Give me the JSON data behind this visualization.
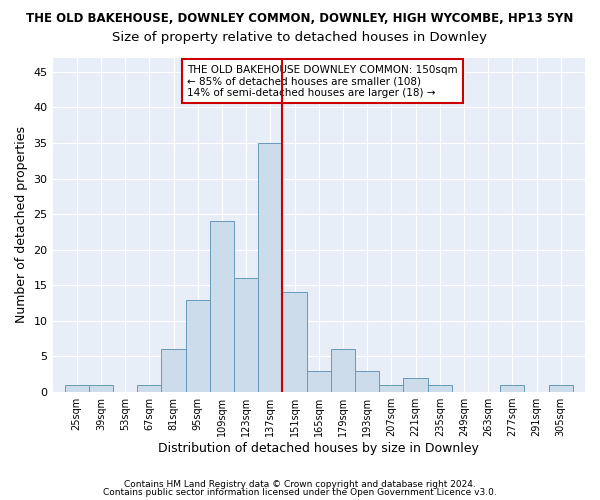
{
  "title": "THE OLD BAKEHOUSE, DOWNLEY COMMON, DOWNLEY, HIGH WYCOMBE, HP13 5YN",
  "subtitle": "Size of property relative to detached houses in Downley",
  "xlabel": "Distribution of detached houses by size in Downley",
  "ylabel": "Number of detached properties",
  "bin_labels": [
    "25sqm",
    "39sqm",
    "53sqm",
    "67sqm",
    "81sqm",
    "95sqm",
    "109sqm",
    "123sqm",
    "137sqm",
    "151sqm",
    "165sqm",
    "179sqm",
    "193sqm",
    "207sqm",
    "221sqm",
    "235sqm",
    "249sqm",
    "263sqm",
    "277sqm",
    "291sqm",
    "305sqm"
  ],
  "bin_edges": [
    25,
    39,
    53,
    67,
    81,
    95,
    109,
    123,
    137,
    151,
    165,
    179,
    193,
    207,
    221,
    235,
    249,
    263,
    277,
    291,
    305
  ],
  "bar_heights": [
    1,
    1,
    0,
    1,
    6,
    13,
    24,
    16,
    35,
    14,
    3,
    6,
    3,
    1,
    2,
    1,
    0,
    0,
    1,
    0,
    1
  ],
  "bar_color": "#ccdcea",
  "bar_edge_color": "#6699bb",
  "vline_x": 151,
  "vline_color": "#cc0000",
  "annotation_text": "THE OLD BAKEHOUSE DOWNLEY COMMON: 150sqm\n← 85% of detached houses are smaller (108)\n14% of semi-detached houses are larger (18) →",
  "annotation_box_color": "#ffffff",
  "annotation_box_edge": "#cc0000",
  "ylim": [
    0,
    47
  ],
  "yticks": [
    0,
    5,
    10,
    15,
    20,
    25,
    30,
    35,
    40,
    45
  ],
  "footer1": "Contains HM Land Registry data © Crown copyright and database right 2024.",
  "footer2": "Contains public sector information licensed under the Open Government Licence v3.0.",
  "bg_color": "#e8eef8",
  "grid_color": "#ffffff",
  "title_fontsize": 8.5,
  "subtitle_fontsize": 9.5,
  "axis_label_fontsize": 9
}
